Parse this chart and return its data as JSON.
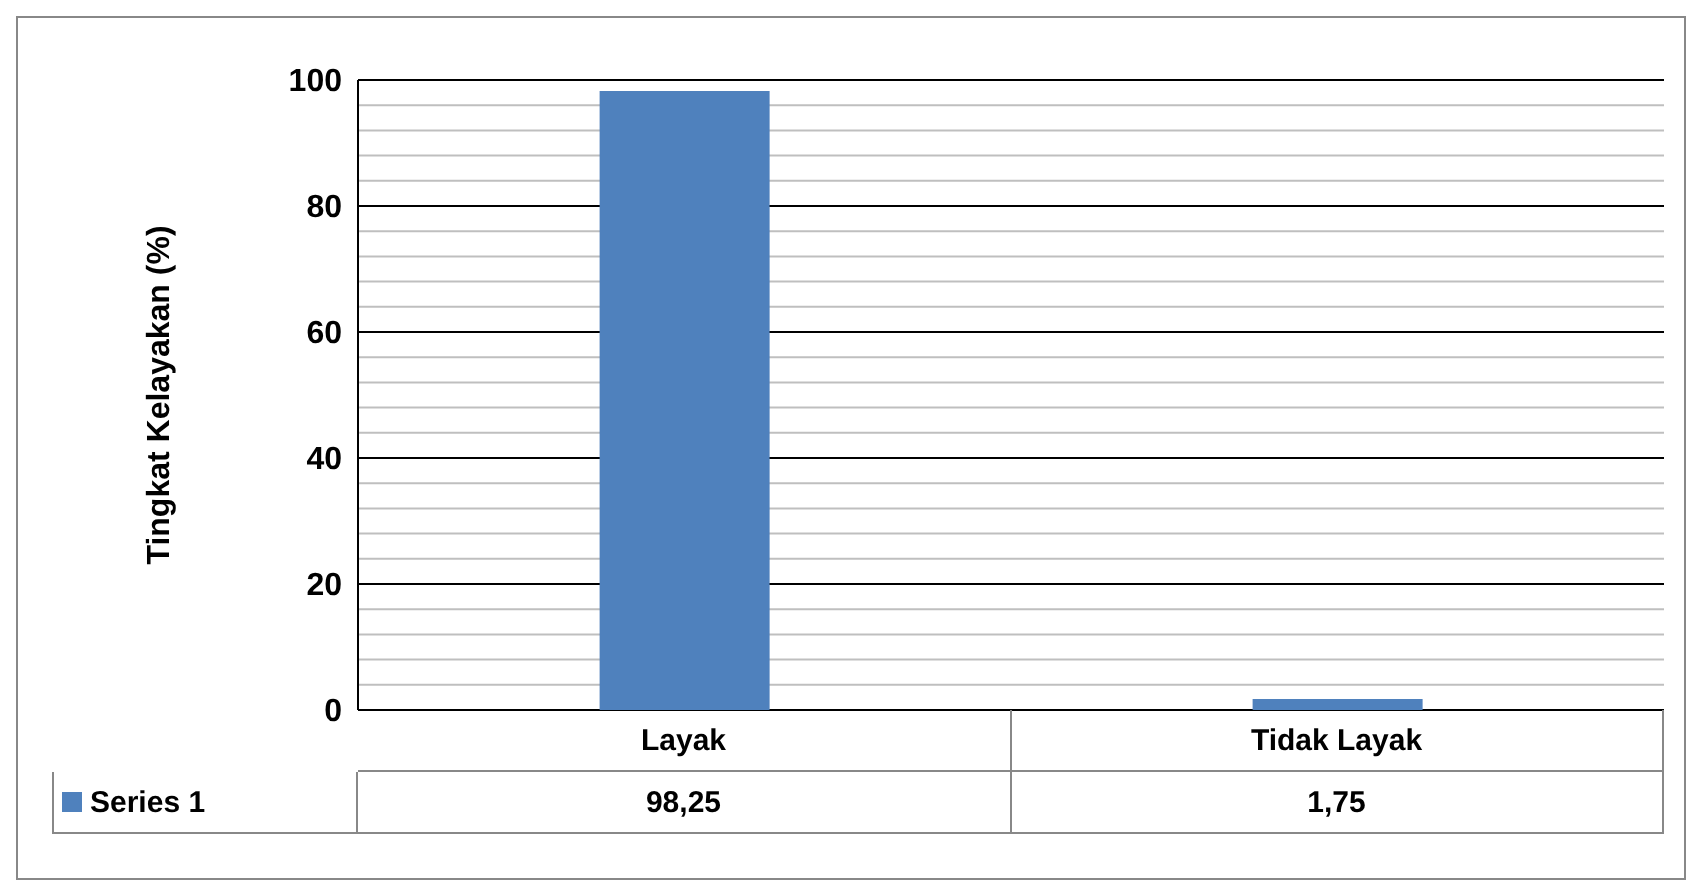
{
  "chart_data": {
    "type": "bar",
    "ylabel": "Tingkat Kelayakan (%)",
    "categories": [
      "Layak",
      "Tidak Layak"
    ],
    "series": [
      {
        "name": "Series 1",
        "color": "#4f81bd",
        "values": [
          98.25,
          1.75
        ],
        "value_labels": [
          "98,25",
          "1,75"
        ]
      }
    ],
    "ylim": [
      0,
      100
    ],
    "yticks": [
      0,
      {
        "value": 4,
        "label": null
      },
      {
        "value": 8,
        "label": null
      },
      {
        "value": 12,
        "label": null
      },
      {
        "value": 16,
        "label": null
      },
      20,
      {
        "value": 24,
        "label": null
      },
      {
        "value": 28,
        "label": null
      },
      {
        "value": 32,
        "label": null
      },
      {
        "value": 36,
        "label": null
      },
      40,
      {
        "value": 44,
        "label": null
      },
      {
        "value": 48,
        "label": null
      },
      {
        "value": 52,
        "label": null
      },
      {
        "value": 56,
        "label": null
      },
      60,
      {
        "value": 64,
        "label": null
      },
      {
        "value": 68,
        "label": null
      },
      {
        "value": 72,
        "label": null
      },
      {
        "value": 76,
        "label": null
      },
      80,
      {
        "value": 84,
        "label": null
      },
      {
        "value": 88,
        "label": null
      },
      {
        "value": 92,
        "label": null
      },
      {
        "value": 96,
        "label": null
      },
      100
    ],
    "grid": true,
    "legend": "bottom"
  }
}
